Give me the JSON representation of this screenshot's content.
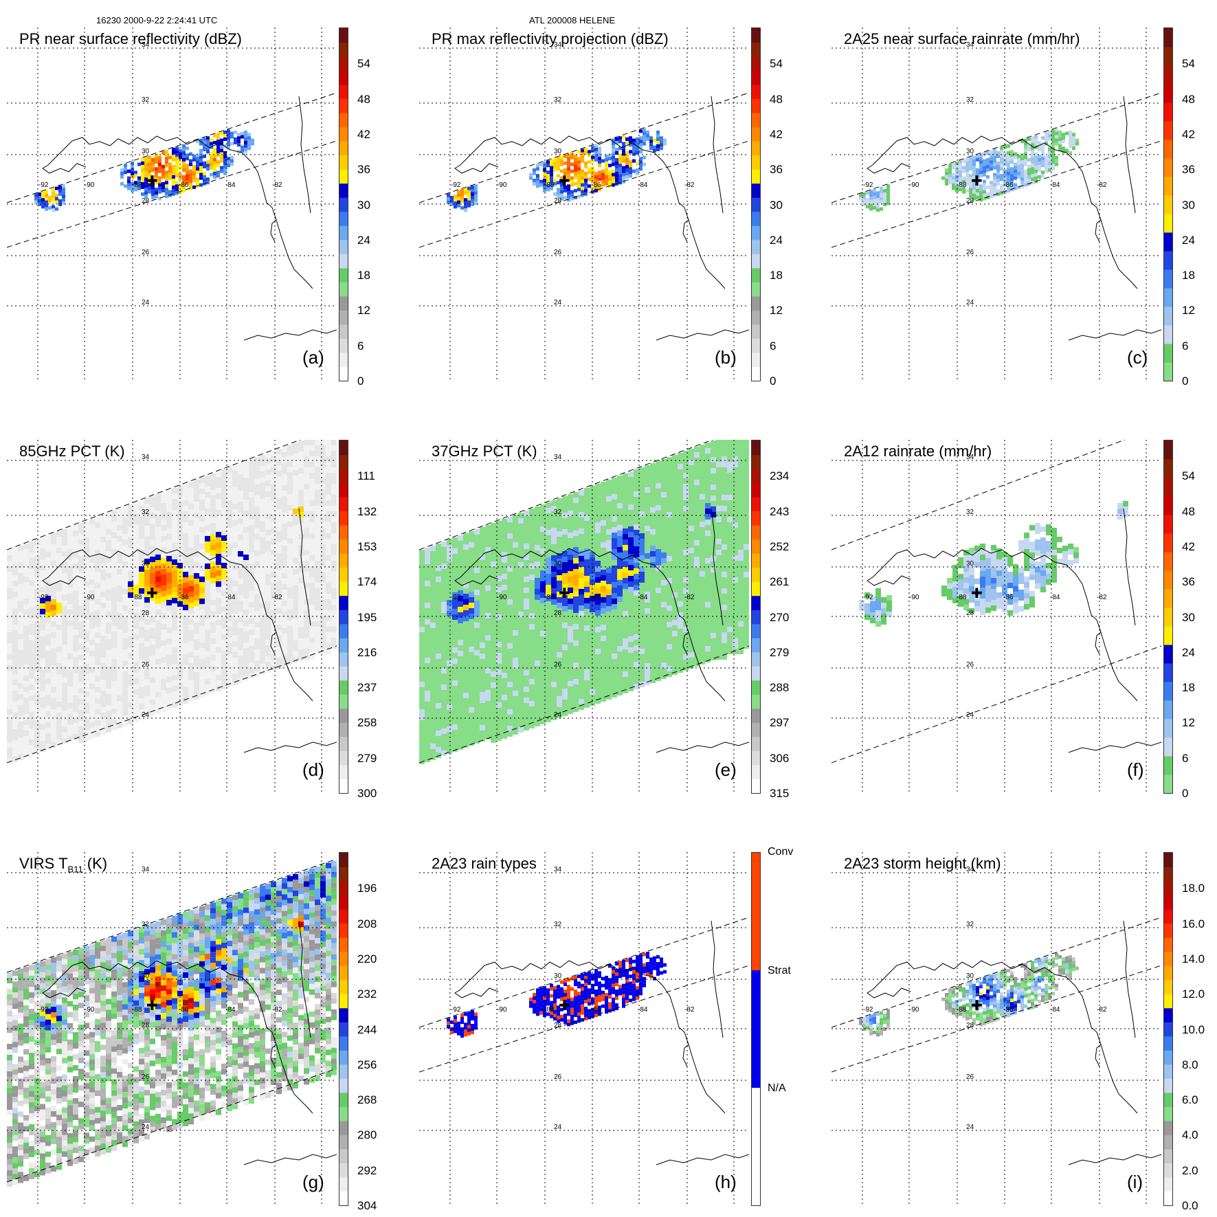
{
  "header": {
    "left": "16230 2000-9-22 2:24:41 UTC",
    "center": "ATL 200008 HELENE"
  },
  "lat_labels": [
    "34",
    "32",
    "30",
    "28",
    "26",
    "24"
  ],
  "lon_labels": [
    "-92",
    "-90",
    "-88",
    "-86",
    "-84",
    "-82"
  ],
  "panels": [
    {
      "id": "a",
      "title": "PR near surface reflectivity (dBZ)",
      "label": "(a)",
      "ticks": [
        "0",
        "6",
        "12",
        "18",
        "24",
        "30",
        "36",
        "42",
        "48",
        "54"
      ],
      "scale": "dbz",
      "swath": "pr",
      "field": "dbz"
    },
    {
      "id": "b",
      "title": "PR max reflectivity projection (dBZ)",
      "label": "(b)",
      "ticks": [
        "0",
        "6",
        "12",
        "18",
        "24",
        "30",
        "36",
        "42",
        "48",
        "54"
      ],
      "scale": "dbz",
      "swath": "pr",
      "field": "dbzmax"
    },
    {
      "id": "c",
      "title": "2A25 near surface rainrate (mm/hr)",
      "label": "(c)",
      "ticks": [
        "0",
        "6",
        "12",
        "18",
        "24",
        "30",
        "36",
        "42",
        "48",
        "54"
      ],
      "scale": "rain",
      "swath": "pr",
      "field": "rain"
    },
    {
      "id": "d",
      "title": "85GHz PCT (K)",
      "label": "(d)",
      "ticks": [
        "300",
        "279",
        "258",
        "237",
        "216",
        "195",
        "174",
        "153",
        "132",
        "111"
      ],
      "scale": "pct",
      "swath": "tmi",
      "field": "pct85"
    },
    {
      "id": "e",
      "title": "37GHz PCT (K)",
      "label": "(e)",
      "ticks": [
        "315",
        "306",
        "297",
        "288",
        "279",
        "270",
        "261",
        "252",
        "243",
        "234"
      ],
      "scale": "pct",
      "swath": "tmi",
      "field": "pct37"
    },
    {
      "id": "f",
      "title": "2A12 rainrate (mm/hr)",
      "label": "(f)",
      "ticks": [
        "0",
        "6",
        "12",
        "18",
        "24",
        "30",
        "36",
        "42",
        "48",
        "54"
      ],
      "scale": "rain",
      "swath": "tmi",
      "field": "rain12"
    },
    {
      "id": "g",
      "title": "VIRS T",
      "title_sub": "B11",
      "title_suffix": " (K)",
      "label": "(g)",
      "ticks": [
        "304",
        "292",
        "280",
        "268",
        "256",
        "244",
        "232",
        "220",
        "208",
        "196"
      ],
      "scale": "pct",
      "swath": "virs",
      "field": "virs"
    },
    {
      "id": "h",
      "title": "2A23 rain types",
      "label": "(h)",
      "rain_types": [
        "N/A",
        "Strat",
        "Conv"
      ],
      "scale": "types",
      "swath": "pr",
      "field": "types"
    },
    {
      "id": "i",
      "title": "2A23 storm height (km)",
      "label": "(i)",
      "ticks": [
        "0.0",
        "2.0",
        "4.0",
        "6.0",
        "8.0",
        "10.0",
        "12.0",
        "14.0",
        "16.0",
        "18.0"
      ],
      "scale": "height",
      "swath": "pr",
      "field": "height"
    }
  ],
  "colors": {
    "dbz": [
      "#ffffff",
      "#eeeeee",
      "#dcdcdc",
      "#c8c8c8",
      "#b0b0b0",
      "#999999",
      "#88dd88",
      "#66cc66",
      "#c8d8f0",
      "#9ec4ee",
      "#6aa8f0",
      "#3a7cf0",
      "#2244e0",
      "#0000cc",
      "#ffee00",
      "#ffcc00",
      "#ffaa00",
      "#ff8800",
      "#ff6600",
      "#ff3300",
      "#ee1100",
      "#cc0000",
      "#aa1100",
      "#882200",
      "#661111"
    ],
    "rain": [
      "#88dd88",
      "#66cc66",
      "#c8d8f0",
      "#9ec4ee",
      "#6aa8f0",
      "#3a7cf0",
      "#2244e0",
      "#0000cc",
      "#ffee00",
      "#ffcc00",
      "#ffaa00",
      "#ff8800",
      "#ff6600",
      "#ff3300",
      "#ee1100",
      "#cc0000",
      "#aa1100",
      "#882200",
      "#661111"
    ],
    "pct": [
      "#ffffff",
      "#eeeeee",
      "#dcdcdc",
      "#c8c8c8",
      "#b0b0b0",
      "#999999",
      "#88dd88",
      "#66cc66",
      "#c8d8f0",
      "#9ec4ee",
      "#6aa8f0",
      "#3a7cf0",
      "#2244e0",
      "#0000cc",
      "#ffee00",
      "#ffcc00",
      "#ffaa00",
      "#ff8800",
      "#ff6600",
      "#ff3300",
      "#ee1100",
      "#cc0000",
      "#aa1100",
      "#882200",
      "#661111"
    ],
    "height": [
      "#ffffff",
      "#eeeeee",
      "#dcdcdc",
      "#c8c8c8",
      "#b0b0b0",
      "#999999",
      "#88dd88",
      "#66cc66",
      "#c8d8f0",
      "#9ec4ee",
      "#6aa8f0",
      "#3a7cf0",
      "#2244e0",
      "#0000cc",
      "#ffee00",
      "#ffcc00",
      "#ffaa00",
      "#ff8800",
      "#ff6600",
      "#ff3300",
      "#ee1100",
      "#cc0000",
      "#aa1100",
      "#882200",
      "#661111"
    ],
    "types": [
      "#ffffff",
      "#0000ee",
      "#ff4400"
    ]
  }
}
